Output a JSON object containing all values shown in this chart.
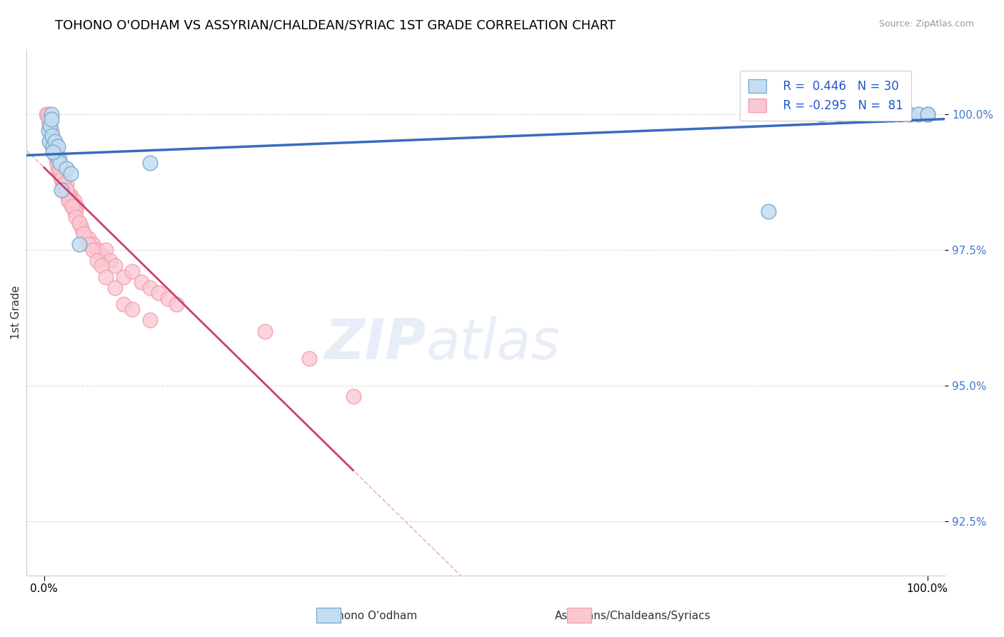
{
  "title": "TOHONO O'ODHAM VS ASSYRIAN/CHALDEAN/SYRIAC 1ST GRADE CORRELATION CHART",
  "source": "Source: ZipAtlas.com",
  "ylabel": "1st Grade",
  "y_ticks": [
    92.5,
    95.0,
    97.5,
    100.0
  ],
  "xlim": [
    -0.02,
    1.02
  ],
  "ylim": [
    91.5,
    101.2
  ],
  "legend_r1": "R =  0.446",
  "legend_n1": "N = 30",
  "legend_r2": "R = -0.295",
  "legend_n2": "N =  81",
  "blue_color": "#7aadd4",
  "pink_color": "#f4a0b0",
  "blue_fill": "#c5ddf0",
  "pink_fill": "#fac8d2",
  "trend_blue": "#3a6bbf",
  "trend_pink": "#c94070",
  "blue_scatter_x": [
    0.005,
    0.006,
    0.007,
    0.008,
    0.009,
    0.01,
    0.012,
    0.013,
    0.015,
    0.016,
    0.018,
    0.02,
    0.025,
    0.03,
    0.04,
    0.12,
    0.82,
    0.88,
    0.9,
    0.92,
    0.94,
    0.95,
    0.96,
    0.97,
    0.98,
    0.99,
    1.0,
    1.0,
    0.008,
    0.01
  ],
  "blue_scatter_y": [
    99.7,
    99.5,
    99.8,
    100.0,
    99.6,
    99.4,
    99.5,
    99.3,
    99.2,
    99.4,
    99.1,
    98.6,
    99.0,
    98.9,
    97.6,
    99.1,
    98.2,
    100.0,
    100.0,
    100.0,
    100.0,
    100.0,
    100.0,
    100.0,
    100.0,
    100.0,
    100.0,
    100.0,
    99.9,
    99.3
  ],
  "pink_scatter_x": [
    0.003,
    0.004,
    0.005,
    0.006,
    0.007,
    0.008,
    0.009,
    0.01,
    0.011,
    0.012,
    0.013,
    0.014,
    0.015,
    0.016,
    0.017,
    0.018,
    0.019,
    0.02,
    0.021,
    0.022,
    0.023,
    0.025,
    0.027,
    0.028,
    0.03,
    0.032,
    0.034,
    0.035,
    0.037,
    0.04,
    0.042,
    0.045,
    0.05,
    0.055,
    0.06,
    0.065,
    0.07,
    0.075,
    0.08,
    0.09,
    0.1,
    0.11,
    0.12,
    0.13,
    0.14,
    0.15,
    0.016,
    0.018,
    0.02,
    0.022,
    0.025,
    0.028,
    0.03,
    0.032,
    0.035,
    0.007,
    0.009,
    0.011,
    0.013,
    0.015,
    0.017,
    0.02,
    0.022,
    0.025,
    0.028,
    0.032,
    0.036,
    0.04,
    0.045,
    0.05,
    0.055,
    0.06,
    0.065,
    0.07,
    0.08,
    0.09,
    0.1,
    0.12,
    0.25,
    0.3,
    0.35
  ],
  "pink_scatter_y": [
    100.0,
    100.0,
    99.9,
    99.8,
    99.7,
    99.7,
    99.6,
    99.5,
    99.4,
    99.3,
    99.4,
    99.2,
    99.1,
    99.0,
    99.2,
    99.0,
    98.9,
    98.8,
    98.7,
    98.6,
    98.9,
    98.7,
    98.5,
    98.4,
    98.5,
    98.3,
    98.4,
    98.2,
    98.3,
    98.0,
    97.9,
    97.8,
    97.7,
    97.6,
    97.5,
    97.4,
    97.5,
    97.3,
    97.2,
    97.0,
    97.1,
    96.9,
    96.8,
    96.7,
    96.6,
    96.5,
    99.1,
    99.0,
    98.8,
    98.7,
    98.6,
    98.5,
    98.4,
    98.3,
    98.2,
    99.5,
    99.4,
    99.3,
    99.2,
    99.1,
    99.0,
    98.8,
    98.7,
    98.6,
    98.4,
    98.3,
    98.1,
    98.0,
    97.8,
    97.6,
    97.5,
    97.3,
    97.2,
    97.0,
    96.8,
    96.5,
    96.4,
    96.2,
    96.0,
    95.5,
    94.8
  ]
}
